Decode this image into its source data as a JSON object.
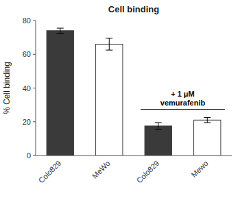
{
  "chart_data": {
    "type": "bar",
    "title": "Cell binding",
    "ylabel": "% Cell binding",
    "categories": [
      "Colo829",
      "MeWo",
      "Colo829",
      "Mewo"
    ],
    "values": [
      74.0,
      66.0,
      17.5,
      21.0
    ],
    "errors": [
      1.5,
      3.5,
      2.0,
      1.5
    ],
    "colors": [
      "#3a3a3a",
      "#ffffff",
      "#3a3a3a",
      "#ffffff"
    ],
    "ylim": [
      0,
      80
    ],
    "yticks": [
      0,
      20,
      40,
      60,
      80
    ],
    "annotation": "+ 1 μM\nvemurafenib"
  }
}
